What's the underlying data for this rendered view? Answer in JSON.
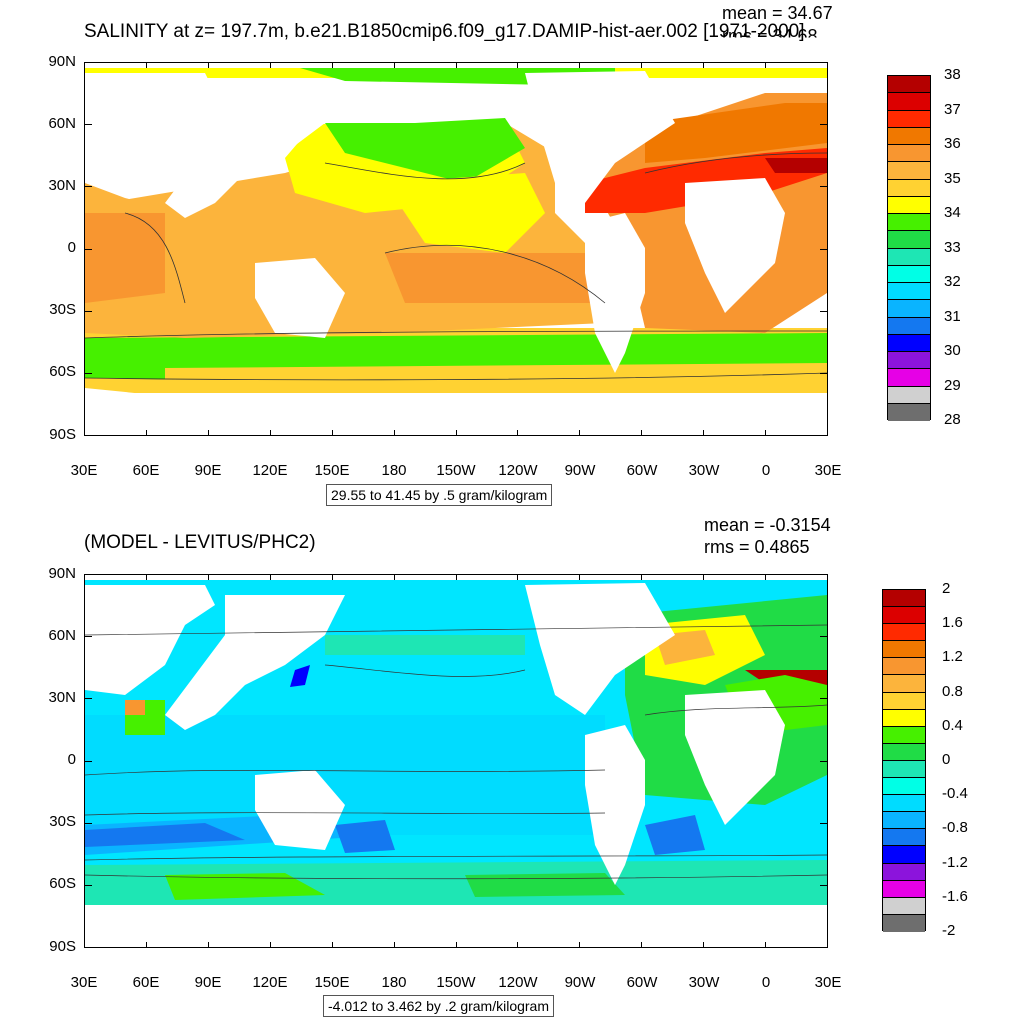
{
  "top": {
    "title": "SALINITY at z= 197.7m, b.e21.B1850cmip6.f09_g17.DAMIP-hist-aer.002 [1971-2000]",
    "mean": "mean = 34.67",
    "rms": "rms = 34.68",
    "range_note": "29.55 to 41.45 by .5 gram/kilogram",
    "colorbar": {
      "labels": [
        "38",
        "37",
        "36",
        "35",
        "34",
        "33",
        "32",
        "31",
        "30",
        "29",
        "28"
      ],
      "colors": [
        "#b40000",
        "#dc0000",
        "#ff2a00",
        "#f07800",
        "#f89630",
        "#fcb43c",
        "#ffd232",
        "#ffff00",
        "#46f000",
        "#20dc46",
        "#1ee6b4",
        "#00ffe6",
        "#00dcff",
        "#0ab4ff",
        "#1478f0",
        "#0000ff",
        "#8c14dc",
        "#e600e6",
        "#d0d0d0",
        "#6e6e6e"
      ]
    }
  },
  "bottom": {
    "title": "(MODEL - LEVITUS/PHC2)",
    "mean": "mean = -0.3154",
    "rms": "rms = 0.4865",
    "range_note": "-4.012 to 3.462 by .2 gram/kilogram",
    "colorbar": {
      "labels": [
        "2",
        "1.6",
        "1.2",
        "0.8",
        "0.4",
        "0",
        "-0.4",
        "-0.8",
        "-1.2",
        "-1.6",
        "-2"
      ],
      "colors": [
        "#b40000",
        "#dc0000",
        "#ff2a00",
        "#f07800",
        "#f89630",
        "#fcb43c",
        "#ffd232",
        "#ffff00",
        "#46f000",
        "#20dc46",
        "#1ee6b4",
        "#00ffe6",
        "#00dcff",
        "#0ab4ff",
        "#1478f0",
        "#0000ff",
        "#8c14dc",
        "#e600e6",
        "#d0d0d0",
        "#6e6e6e"
      ]
    }
  },
  "axes": {
    "y_ticks": [
      "90N",
      "60N",
      "30N",
      "0",
      "30S",
      "60S",
      "90S"
    ],
    "x_ticks": [
      "30E",
      "60E",
      "90E",
      "120E",
      "150E",
      "180",
      "150W",
      "120W",
      "90W",
      "60W",
      "30W",
      "0",
      "30E"
    ]
  }
}
